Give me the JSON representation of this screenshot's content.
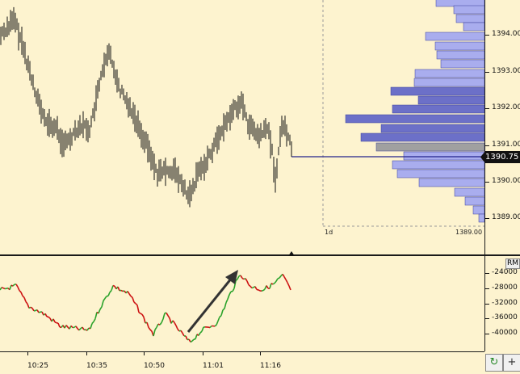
{
  "main": {
    "price_ticks": [
      "1394.00",
      "1393.00",
      "1392.00",
      "1391.00",
      "1390.00",
      "1389.00"
    ],
    "current_price": "1390.75",
    "profile_period": "1d",
    "profile_low": "1389.00"
  },
  "indicator": {
    "badge": "RM",
    "ticks": [
      "-24000",
      "-28000",
      "-32000",
      "-36000",
      "-40000"
    ]
  },
  "time_axis": {
    "ticks": [
      "10:25",
      "10:35",
      "10:50",
      "11:01",
      "11:16"
    ]
  },
  "buttons": {
    "refresh_icon": "refresh-icon",
    "add_label": "+"
  },
  "colors": {
    "background": "#fdf3cf",
    "bars": "#111111",
    "profile_dark": "#6c70c8",
    "profile_light": "#a9adee",
    "poc": "#a0a0a0",
    "up": "#2aa22a",
    "down": "#cc1111"
  }
}
